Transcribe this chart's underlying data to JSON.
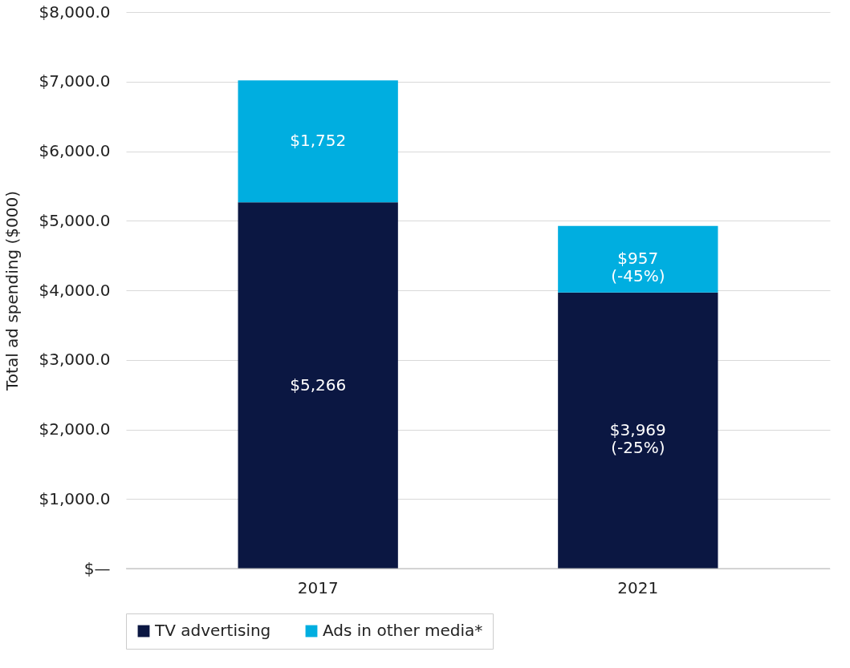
{
  "chart_data": {
    "type": "bar",
    "stacked": true,
    "ylabel": "Total ad spending ($000)",
    "categories": [
      "2017",
      "2021"
    ],
    "series": [
      {
        "name": "TV advertising",
        "color": "#0b1742",
        "values": [
          5266,
          3969
        ],
        "value_labels": [
          "$5,266",
          "$3,969\n(-25%)"
        ]
      },
      {
        "name": "Ads in other media*",
        "color": "#00aee0",
        "values": [
          1752,
          957
        ],
        "value_labels": [
          "$1,752",
          "$957\n(-45%)"
        ]
      }
    ],
    "ylim": [
      0,
      8000
    ],
    "yticks": [
      {
        "value": 0,
        "label": "$—"
      },
      {
        "value": 1000,
        "label": "$1,000.0"
      },
      {
        "value": 2000,
        "label": "$2,000.0"
      },
      {
        "value": 3000,
        "label": "$3,000.0"
      },
      {
        "value": 4000,
        "label": "$4,000.0"
      },
      {
        "value": 5000,
        "label": "$5,000.0"
      },
      {
        "value": 6000,
        "label": "$6,000.0"
      },
      {
        "value": 7000,
        "label": "$7,000.0"
      },
      {
        "value": 8000,
        "label": "$8,000.0"
      }
    ],
    "grid": "y",
    "legend": "bottom"
  }
}
